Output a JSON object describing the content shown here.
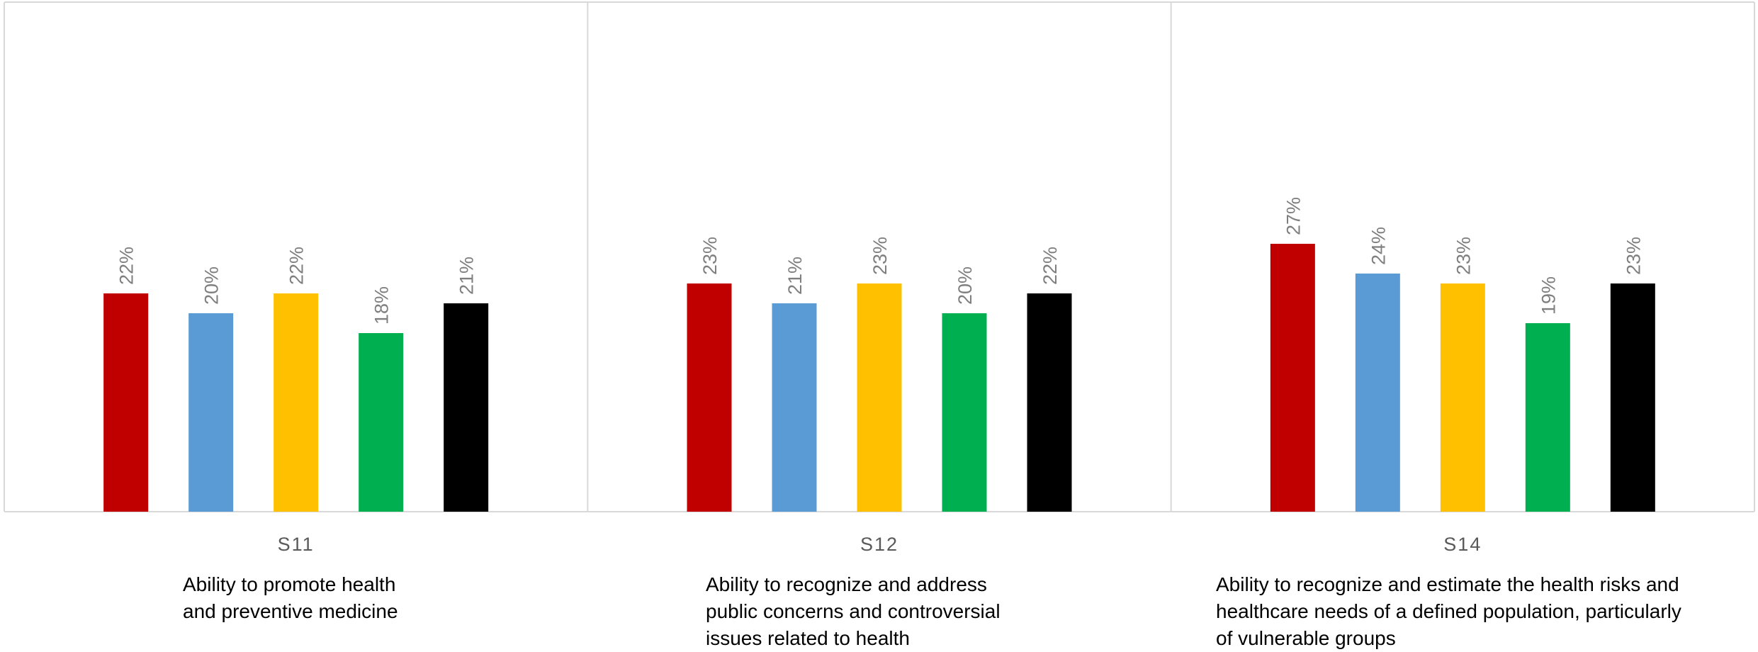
{
  "chart_data": {
    "type": "bar",
    "categories": [
      "S11",
      "S12",
      "S14"
    ],
    "series": [
      {
        "values": [
          22,
          23,
          27
        ]
      },
      {
        "values": [
          20,
          21,
          24
        ]
      },
      {
        "values": [
          22,
          23,
          23
        ]
      },
      {
        "values": [
          18,
          20,
          19
        ]
      },
      {
        "values": [
          21,
          22,
          23
        ]
      }
    ],
    "data_labels": [
      [
        "22%",
        "20%",
        "22%",
        "18%",
        "21%"
      ],
      [
        "23%",
        "21%",
        "23%",
        "20%",
        "22%"
      ],
      [
        "27%",
        "24%",
        "23%",
        "19%",
        "23%"
      ]
    ],
    "series_colors": [
      "#C00000",
      "#5B9BD5",
      "#FFC000",
      "#00B050",
      "#000000"
    ],
    "value_unit": "%",
    "ylim": [
      0,
      30
    ],
    "grid": false,
    "legend": "none",
    "descriptions": [
      [
        "Ability to promote health",
        "and preventive medicine"
      ],
      [
        "Ability to recognize and address",
        "public concerns and controversial",
        "issues related to health"
      ],
      [
        "Ability to recognize and estimate the health risks and",
        "healthcare needs of a defined population, particularly",
        "of vulnerable groups"
      ]
    ]
  }
}
